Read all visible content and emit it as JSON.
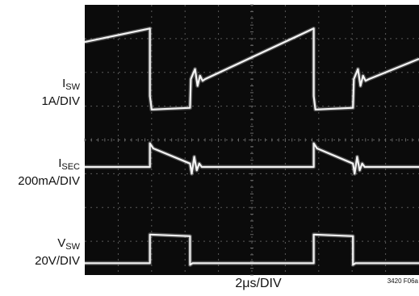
{
  "chart_data": {
    "type": "line",
    "title": "",
    "xlabel": "2μs/DIV",
    "figure_id": "3420 F06a",
    "time_per_div_us": 2,
    "x_divisions": 10,
    "y_divisions": 8,
    "x_range_us": [
      -2,
      18
    ],
    "series": [
      {
        "name": "I_SW",
        "label_main": "I",
        "label_sub": "SW",
        "scale": "1A/DIV",
        "unit": "div",
        "x": [
          -2,
          1.9,
          1.9,
          1.95,
          2.0,
          4.3,
          4.35,
          4.6,
          4.75,
          4.9,
          5.05,
          5.2,
          11.7,
          11.7,
          11.75,
          11.8,
          14.05,
          14.1,
          14.35,
          14.5,
          14.65,
          14.8,
          15.0,
          18
        ],
        "y": [
          6.9,
          7.3,
          5.3,
          5.1,
          4.9,
          4.95,
          5.8,
          6.1,
          5.6,
          5.9,
          5.75,
          5.8,
          7.3,
          5.3,
          5.1,
          4.9,
          4.95,
          5.8,
          6.1,
          5.6,
          5.9,
          5.75,
          5.8,
          6.4
        ]
      },
      {
        "name": "I_SEC",
        "label_main": "I",
        "label_sub": "SEC",
        "scale": "200mA/DIV",
        "unit": "div",
        "x": [
          -2,
          1.9,
          1.9,
          2.1,
          4.3,
          4.4,
          4.55,
          4.7,
          4.85,
          5.0,
          5.2,
          11.7,
          11.7,
          11.9,
          14.05,
          14.15,
          14.3,
          14.45,
          14.6,
          14.75,
          15.0,
          18
        ],
        "y": [
          3.2,
          3.2,
          3.9,
          3.75,
          3.3,
          3.0,
          3.5,
          3.1,
          3.3,
          3.2,
          3.2,
          3.2,
          3.9,
          3.75,
          3.3,
          3.0,
          3.5,
          3.1,
          3.3,
          3.2,
          3.2,
          3.2
        ]
      },
      {
        "name": "V_SW",
        "label_main": "V",
        "label_sub": "SW",
        "scale": "20V/DIV",
        "unit": "div",
        "x": [
          -2,
          1.9,
          1.9,
          4.3,
          4.3,
          4.45,
          11.7,
          11.7,
          14.05,
          14.05,
          14.2,
          18
        ],
        "y": [
          0.35,
          0.35,
          1.2,
          1.15,
          0.3,
          0.35,
          0.35,
          1.2,
          1.15,
          0.3,
          0.35,
          0.35
        ]
      }
    ]
  }
}
